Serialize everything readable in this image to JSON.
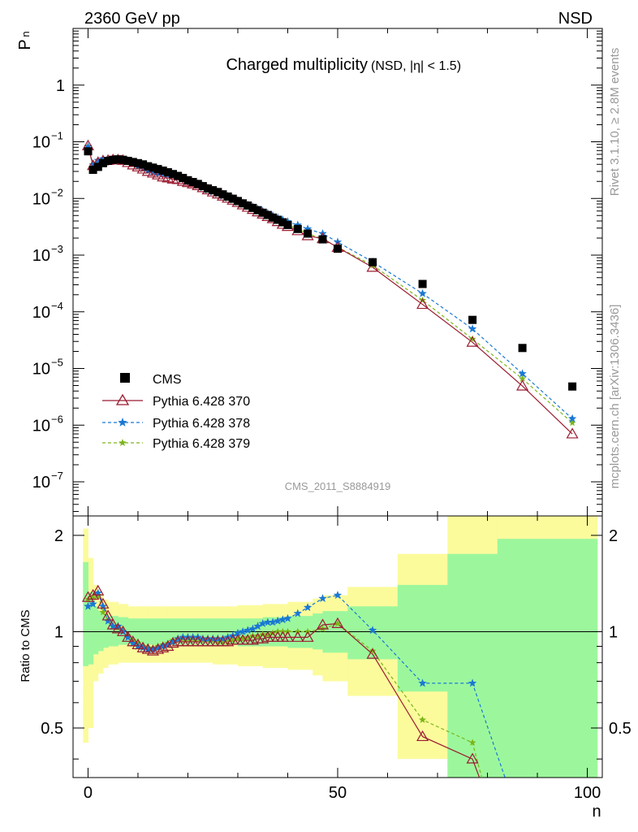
{
  "header": {
    "left": "2360 GeV pp",
    "right": "NSD"
  },
  "side_labels": {
    "rivet": "Rivet 3.1.10, ≥ 2.8M events",
    "mcplots": "mcplots.cern.ch [arXiv:1306.3436]"
  },
  "chart_data": [
    {
      "type": "scatter",
      "title": "Charged multiplicity",
      "title_suffix": "(NSD, |η| < 1.5)",
      "analysis": "CMS_2011_S8884919",
      "xlabel": "n",
      "ylabel": "P",
      "ylabel_sub": "n",
      "yscale": "log",
      "xlim": [
        -3,
        103
      ],
      "ylim": [
        2.5e-08,
        10
      ],
      "y_ticks": [
        {
          "value": 1e-07,
          "base": "10",
          "exp": "−7"
        },
        {
          "value": 1e-06,
          "base": "10",
          "exp": "−6"
        },
        {
          "value": 1e-05,
          "base": "10",
          "exp": "−5"
        },
        {
          "value": 0.0001,
          "base": "10",
          "exp": "−4"
        },
        {
          "value": 0.001,
          "base": "10",
          "exp": "−3"
        },
        {
          "value": 0.01,
          "base": "10",
          "exp": "−2"
        },
        {
          "value": 0.1,
          "base": "10",
          "exp": "−1"
        },
        {
          "value": 1,
          "base": "1",
          "exp": ""
        }
      ],
      "legend_position": "bottom-left",
      "series": [
        {
          "name": "CMS",
          "marker": "square",
          "color": "#000000",
          "x": [
            0,
            1,
            2,
            3,
            4,
            5,
            6,
            7,
            8,
            9,
            10,
            11,
            12,
            13,
            14,
            15,
            16,
            17,
            18,
            19,
            20,
            21,
            22,
            23,
            24,
            25,
            26,
            27,
            28,
            29,
            30,
            31,
            32,
            33,
            34,
            35,
            36,
            37,
            38,
            39,
            40,
            42,
            44,
            47,
            50,
            57,
            67,
            77,
            87,
            97
          ],
          "y": [
            0.068,
            0.032,
            0.036,
            0.042,
            0.046,
            0.048,
            0.049,
            0.048,
            0.046,
            0.044,
            0.042,
            0.04,
            0.037,
            0.035,
            0.033,
            0.031,
            0.029,
            0.027,
            0.025,
            0.023,
            0.021,
            0.0195,
            0.018,
            0.0165,
            0.015,
            0.014,
            0.013,
            0.0118,
            0.0108,
            0.0099,
            0.009,
            0.0082,
            0.0075,
            0.0068,
            0.0062,
            0.0056,
            0.0051,
            0.0046,
            0.0042,
            0.0038,
            0.0034,
            0.0029,
            0.0024,
            0.0019,
            0.0013,
            0.00075,
            0.00031,
            7.2e-05,
            2.3e-05,
            4.8e-06
          ]
        },
        {
          "name": "Pythia 6.428 370",
          "marker": "triangle",
          "line": "solid",
          "color": "#9b1b30",
          "x": [
            0,
            1,
            2,
            3,
            4,
            5,
            6,
            7,
            8,
            9,
            10,
            11,
            12,
            13,
            14,
            15,
            16,
            17,
            18,
            19,
            20,
            21,
            22,
            23,
            24,
            25,
            26,
            27,
            28,
            29,
            30,
            31,
            32,
            33,
            34,
            35,
            36,
            37,
            38,
            39,
            40,
            42,
            44,
            47,
            50,
            57,
            67,
            77,
            87,
            97
          ],
          "y": [
            0.085,
            0.038,
            0.043,
            0.046,
            0.047,
            0.048,
            0.048,
            0.047,
            0.043,
            0.039,
            0.036,
            0.033,
            0.03,
            0.028,
            0.026,
            0.024,
            0.023,
            0.022,
            0.0215,
            0.02,
            0.019,
            0.018,
            0.0168,
            0.0155,
            0.0142,
            0.013,
            0.012,
            0.011,
            0.0101,
            0.0093,
            0.0085,
            0.0077,
            0.007,
            0.0064,
            0.0058,
            0.0053,
            0.0048,
            0.0044,
            0.0039,
            0.0035,
            0.0032,
            0.0027,
            0.0022,
            0.00195,
            0.00137,
            0.00061,
            0.000135,
            2.9e-05,
            4.9e-06,
            7e-07
          ]
        },
        {
          "name": "Pythia 6.428 378",
          "marker": "star",
          "line": "dashed",
          "color": "#1a78d4",
          "x": [
            0,
            1,
            2,
            3,
            4,
            5,
            6,
            7,
            8,
            9,
            10,
            11,
            12,
            13,
            14,
            15,
            16,
            17,
            18,
            19,
            20,
            21,
            22,
            23,
            24,
            25,
            26,
            27,
            28,
            29,
            30,
            31,
            32,
            33,
            34,
            35,
            36,
            37,
            38,
            39,
            40,
            42,
            44,
            47,
            50,
            57,
            67,
            77,
            87,
            97
          ],
          "y": [
            0.082,
            0.039,
            0.047,
            0.05,
            0.05,
            0.05,
            0.051,
            0.05,
            0.046,
            0.041,
            0.037,
            0.034,
            0.031,
            0.029,
            0.028,
            0.027,
            0.026,
            0.025,
            0.0235,
            0.022,
            0.02,
            0.0188,
            0.017,
            0.0155,
            0.0142,
            0.013,
            0.012,
            0.011,
            0.0102,
            0.0095,
            0.0089,
            0.0083,
            0.0077,
            0.0071,
            0.0065,
            0.006,
            0.0055,
            0.005,
            0.0046,
            0.0042,
            0.0039,
            0.0034,
            0.0029,
            0.0024,
            0.0017,
            0.00076,
            0.00021,
            5e-05,
            8.1e-06,
            1.3e-06
          ]
        },
        {
          "name": "Pythia 6.428 379",
          "marker": "star",
          "line": "dashed",
          "color": "#7cb518",
          "x": [
            0,
            1,
            2,
            3,
            4,
            5,
            6,
            7,
            8,
            9,
            10,
            11,
            12,
            13,
            14,
            15,
            16,
            17,
            18,
            19,
            20,
            21,
            22,
            23,
            24,
            25,
            26,
            27,
            28,
            29,
            30,
            31,
            32,
            33,
            34,
            35,
            36,
            37,
            38,
            39,
            40,
            42,
            44,
            47,
            50,
            57,
            67,
            77,
            87,
            97
          ],
          "y": [
            0.084,
            0.038,
            0.044,
            0.048,
            0.049,
            0.05,
            0.05,
            0.049,
            0.045,
            0.04,
            0.036,
            0.033,
            0.031,
            0.029,
            0.028,
            0.027,
            0.026,
            0.025,
            0.0235,
            0.022,
            0.02,
            0.0185,
            0.017,
            0.0155,
            0.014,
            0.013,
            0.012,
            0.011,
            0.01,
            0.0093,
            0.0085,
            0.0078,
            0.0071,
            0.0065,
            0.0059,
            0.0054,
            0.005,
            0.0046,
            0.0042,
            0.0038,
            0.0034,
            0.0029,
            0.0024,
            0.00195,
            0.00138,
            0.00066,
            0.00016,
            3.3e-05,
            6.6e-06,
            1.1e-06
          ]
        }
      ]
    },
    {
      "type": "scatter",
      "xlabel": "n",
      "ylabel": "Ratio to CMS",
      "xlim": [
        -3,
        103
      ],
      "ylim": [
        0.35,
        2.3
      ],
      "y_ticks": [
        0.5,
        1,
        2
      ],
      "x_ticks": [
        0,
        50,
        100
      ],
      "reference_line": 1,
      "band_colors": {
        "inner": "#9cf79c",
        "outer": "#fbfb9c"
      },
      "error_band": {
        "x_edges": [
          -1,
          0,
          1,
          2,
          3,
          4,
          6,
          8,
          10,
          12,
          14,
          16,
          18,
          20,
          25,
          30,
          35,
          40,
          45,
          47,
          52,
          62,
          72,
          82,
          102
        ],
        "inner_low": [
          0.78,
          0.79,
          0.85,
          0.87,
          0.89,
          0.9,
          0.91,
          0.91,
          0.91,
          0.91,
          0.91,
          0.91,
          0.91,
          0.91,
          0.91,
          0.9,
          0.9,
          0.89,
          0.88,
          0.86,
          0.82,
          0.65,
          0.3,
          0.3
        ],
        "inner_high": [
          1.65,
          1.33,
          1.2,
          1.16,
          1.14,
          1.12,
          1.11,
          1.1,
          1.1,
          1.1,
          1.1,
          1.1,
          1.1,
          1.1,
          1.1,
          1.1,
          1.11,
          1.12,
          1.14,
          1.16,
          1.2,
          1.4,
          1.75,
          1.95
        ],
        "outer_low": [
          0.45,
          0.5,
          0.7,
          0.74,
          0.77,
          0.79,
          0.8,
          0.8,
          0.8,
          0.8,
          0.8,
          0.8,
          0.8,
          0.8,
          0.79,
          0.78,
          0.77,
          0.76,
          0.73,
          0.7,
          0.63,
          0.4,
          0.3,
          0.3
        ],
        "outer_high": [
          2.1,
          1.7,
          1.4,
          1.3,
          1.26,
          1.24,
          1.22,
          1.2,
          1.2,
          1.2,
          1.2,
          1.2,
          1.2,
          1.2,
          1.2,
          1.21,
          1.22,
          1.24,
          1.27,
          1.3,
          1.38,
          1.75,
          2.3,
          2.3
        ]
      },
      "series": [
        {
          "name": "Pythia 6.428 370",
          "x": [
            0,
            1,
            2,
            3,
            4,
            5,
            6,
            7,
            8,
            9,
            10,
            11,
            12,
            13,
            14,
            15,
            16,
            17,
            18,
            19,
            20,
            21,
            22,
            23,
            24,
            25,
            26,
            27,
            28,
            29,
            30,
            31,
            32,
            33,
            34,
            35,
            36,
            37,
            38,
            39,
            40,
            42,
            44,
            47,
            50,
            57,
            67,
            77,
            80
          ],
          "y": [
            1.28,
            1.3,
            1.34,
            1.22,
            1.12,
            1.05,
            1.02,
            1.0,
            0.96,
            0.93,
            0.91,
            0.89,
            0.88,
            0.87,
            0.88,
            0.89,
            0.9,
            0.92,
            0.93,
            0.93,
            0.93,
            0.93,
            0.93,
            0.93,
            0.93,
            0.93,
            0.93,
            0.93,
            0.93,
            0.94,
            0.94,
            0.94,
            0.94,
            0.94,
            0.95,
            0.95,
            0.96,
            0.96,
            0.96,
            0.96,
            0.96,
            0.96,
            0.96,
            1.05,
            1.06,
            0.85,
            0.47,
            0.4,
            0.3
          ]
        },
        {
          "name": "Pythia 6.428 378",
          "x": [
            0,
            1,
            2,
            3,
            4,
            5,
            6,
            7,
            8,
            9,
            10,
            11,
            12,
            13,
            14,
            15,
            16,
            17,
            18,
            19,
            20,
            21,
            22,
            23,
            24,
            25,
            26,
            27,
            28,
            29,
            30,
            31,
            32,
            33,
            34,
            35,
            36,
            37,
            38,
            39,
            40,
            42,
            44,
            47,
            50,
            57,
            67,
            77,
            85
          ],
          "y": [
            1.2,
            1.22,
            1.32,
            1.2,
            1.08,
            1.04,
            1.04,
            1.0,
            0.96,
            0.92,
            0.9,
            0.89,
            0.88,
            0.88,
            0.89,
            0.9,
            0.91,
            0.93,
            0.95,
            0.96,
            0.96,
            0.96,
            0.96,
            0.95,
            0.95,
            0.95,
            0.95,
            0.95,
            0.96,
            0.97,
            0.99,
            1.0,
            1.01,
            1.02,
            1.04,
            1.06,
            1.07,
            1.07,
            1.08,
            1.09,
            1.1,
            1.14,
            1.19,
            1.27,
            1.3,
            1.01,
            0.69,
            0.69,
            0.3
          ]
        },
        {
          "name": "Pythia 6.428 379",
          "x": [
            0,
            1,
            2,
            3,
            4,
            5,
            6,
            7,
            8,
            9,
            10,
            11,
            12,
            13,
            14,
            15,
            16,
            17,
            18,
            19,
            20,
            21,
            22,
            23,
            24,
            25,
            26,
            27,
            28,
            29,
            30,
            31,
            32,
            33,
            34,
            35,
            36,
            37,
            38,
            39,
            40,
            42,
            44,
            47,
            50,
            57,
            67,
            77,
            80
          ],
          "y": [
            1.26,
            1.28,
            1.3,
            1.15,
            1.08,
            1.04,
            1.03,
            1.0,
            0.97,
            0.94,
            0.92,
            0.9,
            0.89,
            0.89,
            0.9,
            0.91,
            0.92,
            0.94,
            0.95,
            0.95,
            0.95,
            0.95,
            0.95,
            0.94,
            0.94,
            0.94,
            0.93,
            0.93,
            0.93,
            0.94,
            0.95,
            0.95,
            0.96,
            0.97,
            0.97,
            0.98,
            0.98,
            0.99,
            1.0,
            1.0,
            1.0,
            1.0,
            1.0,
            1.02,
            1.06,
            0.87,
            0.53,
            0.45,
            0.3
          ]
        }
      ]
    }
  ]
}
